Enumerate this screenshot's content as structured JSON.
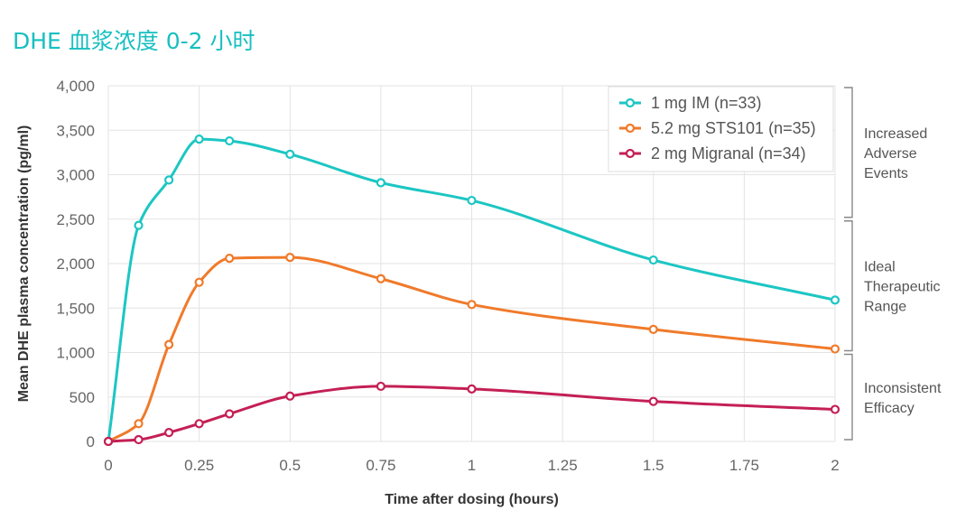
{
  "title": "DHE 血浆浓度 0-2 小时",
  "chart_data": {
    "type": "line",
    "xlabel": "Time after dosing (hours)",
    "ylabel": "Mean DHE plasma concentration (pg/ml)",
    "xlim": [
      0,
      2
    ],
    "ylim": [
      0,
      4000
    ],
    "xticks": [
      0,
      0.25,
      0.5,
      0.75,
      1,
      1.25,
      1.5,
      1.75,
      2
    ],
    "xtick_labels": [
      "0",
      "0.25",
      "0.5",
      "0.75",
      "1",
      "1.25",
      "1.5",
      "1.75",
      "2"
    ],
    "yticks": [
      0,
      500,
      1000,
      1500,
      2000,
      2500,
      3000,
      3500,
      4000
    ],
    "ytick_labels": [
      "0",
      "500",
      "1,000",
      "1,500",
      "2,000",
      "2,500",
      "3,000",
      "3,500",
      "4,000"
    ],
    "grid": true,
    "legend_position": "top-right",
    "series": [
      {
        "name": "1 mg IM (n=33)",
        "color": "#1cc6c3",
        "x": [
          0,
          0.0833,
          0.1667,
          0.25,
          0.3333,
          0.5,
          0.75,
          1,
          1.5,
          2
        ],
        "y": [
          0,
          2430,
          2940,
          3400,
          3380,
          3230,
          2910,
          2710,
          2040,
          1590
        ]
      },
      {
        "name": "5.2 mg STS101 (n=35)",
        "color": "#f07a2a",
        "x": [
          0,
          0.0833,
          0.1667,
          0.25,
          0.3333,
          0.5,
          0.75,
          1,
          1.5,
          2
        ],
        "y": [
          0,
          200,
          1090,
          1790,
          2060,
          2070,
          1830,
          1540,
          1260,
          1040
        ]
      },
      {
        "name": "2 mg Migranal (n=34)",
        "color": "#c41f55",
        "x": [
          0,
          0.0833,
          0.1667,
          0.25,
          0.3333,
          0.5,
          0.75,
          1,
          1.5,
          2
        ],
        "y": [
          0,
          20,
          100,
          200,
          310,
          510,
          620,
          590,
          450,
          360
        ]
      }
    ],
    "bands": [
      {
        "label": "Increased\nAdverse\nEvents",
        "range": [
          2500,
          4000
        ]
      },
      {
        "label": "Ideal\nTherapeutic\nRange",
        "range": [
          1000,
          2500
        ]
      },
      {
        "label": "Inconsistent\nEfficacy",
        "range": [
          0,
          1000
        ]
      }
    ]
  }
}
